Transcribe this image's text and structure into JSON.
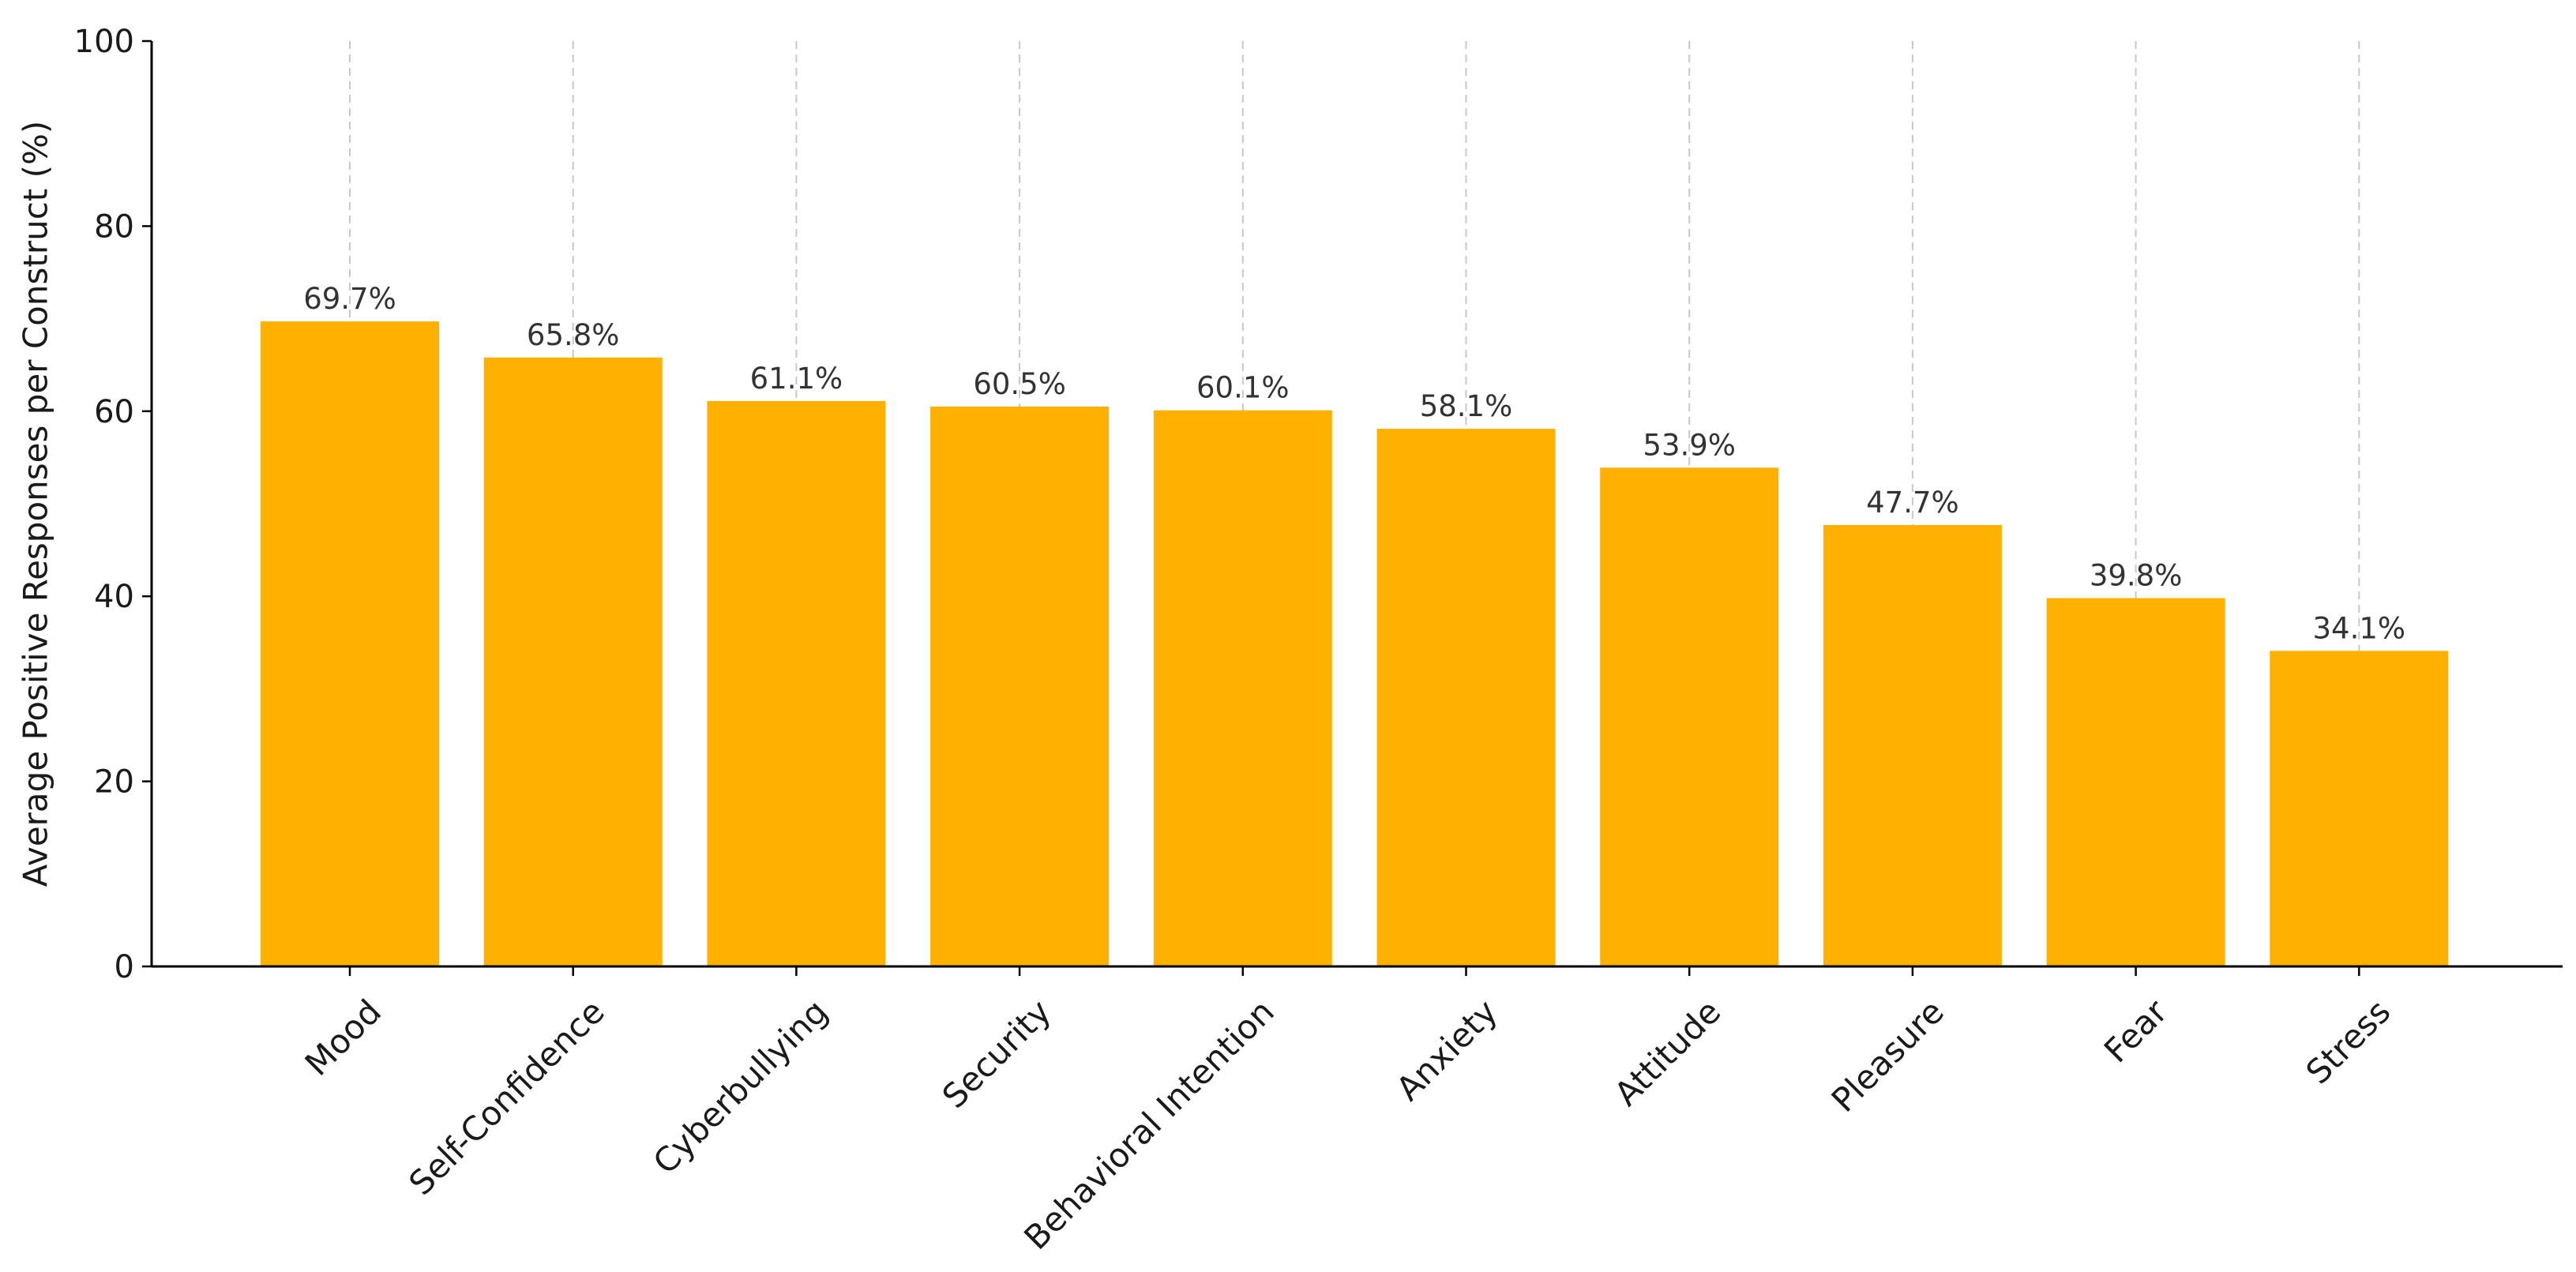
{
  "chart_data": {
    "type": "bar",
    "title": "",
    "xlabel": "",
    "ylabel": "Average Positive Responses per Construct (%)",
    "ylim": [
      0,
      100
    ],
    "yticks": [
      0,
      20,
      40,
      60,
      80,
      100
    ],
    "categories": [
      "Mood",
      "Self-Confidence",
      "Cyberbullying",
      "Security",
      "Behavioral Intention",
      "Anxiety",
      "Attitude",
      "Pleasure",
      "Fear",
      "Stress"
    ],
    "values": [
      69.7,
      65.8,
      61.1,
      60.5,
      60.1,
      58.1,
      53.9,
      47.7,
      39.8,
      34.1
    ],
    "data_labels": [
      "69.7%",
      "65.8%",
      "61.1%",
      "60.5%",
      "60.1%",
      "58.1%",
      "53.9%",
      "47.7%",
      "39.8%",
      "34.1%"
    ],
    "bar_color": "#FFB000",
    "grid": "vertical dashed",
    "legend": "none"
  }
}
